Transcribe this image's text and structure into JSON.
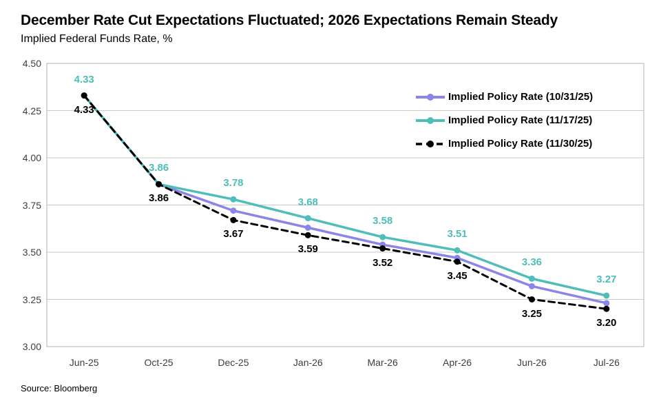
{
  "header": {
    "title": "December Rate Cut Expectations Fluctuated; 2026 Expectations Remain Steady",
    "subtitle": "Implied Federal Funds Rate, %"
  },
  "source": "Source: Bloomberg",
  "colors": {
    "purple": "#8d84e8",
    "teal": "#4fbeb8",
    "black": "#000000",
    "grid": "#c9c9c9",
    "plot_border": "#bfbfbf",
    "axis_text": "#3d3d3d",
    "background": "#ffffff"
  },
  "chart_data": {
    "type": "line",
    "title": "December Rate Cut Expectations Fluctuated; 2026 Expectations Remain Steady",
    "subtitle": "Implied Federal Funds Rate, %",
    "categories": [
      "Jun-25",
      "Oct-25",
      "Dec-25",
      "Jan-26",
      "Mar-26",
      "Apr-26",
      "Jun-26",
      "Jul-26"
    ],
    "xlabel": "",
    "ylabel": "Implied Federal Funds Rate, %",
    "ylim": [
      3.0,
      4.5
    ],
    "ytick_step": 0.25,
    "yticks": [
      "4.50",
      "4.25",
      "4.00",
      "3.75",
      "3.50",
      "3.25",
      "3.00"
    ],
    "grid": "horizontal",
    "legend_position": "upper-right-inside",
    "series": [
      {
        "name": "Implied Policy Rate (10/31/25)",
        "color": "#8d84e8",
        "dash": "solid",
        "marker": "circle",
        "labels_shown": false,
        "values": [
          4.33,
          3.86,
          3.72,
          3.63,
          3.54,
          3.47,
          3.32,
          3.23
        ]
      },
      {
        "name": "Implied Policy Rate (11/17/25)",
        "color": "#4fbeb8",
        "dash": "solid",
        "marker": "circle",
        "labels_shown": true,
        "label_position": "above",
        "values": [
          4.33,
          3.86,
          3.78,
          3.68,
          3.58,
          3.51,
          3.36,
          3.27
        ]
      },
      {
        "name": "Implied Policy Rate (11/30/25)",
        "color": "#000000",
        "dash": "dashed",
        "marker": "circle",
        "labels_shown": true,
        "label_position": "below",
        "values": [
          4.33,
          3.86,
          3.67,
          3.59,
          3.52,
          3.45,
          3.25,
          3.2
        ]
      }
    ]
  }
}
